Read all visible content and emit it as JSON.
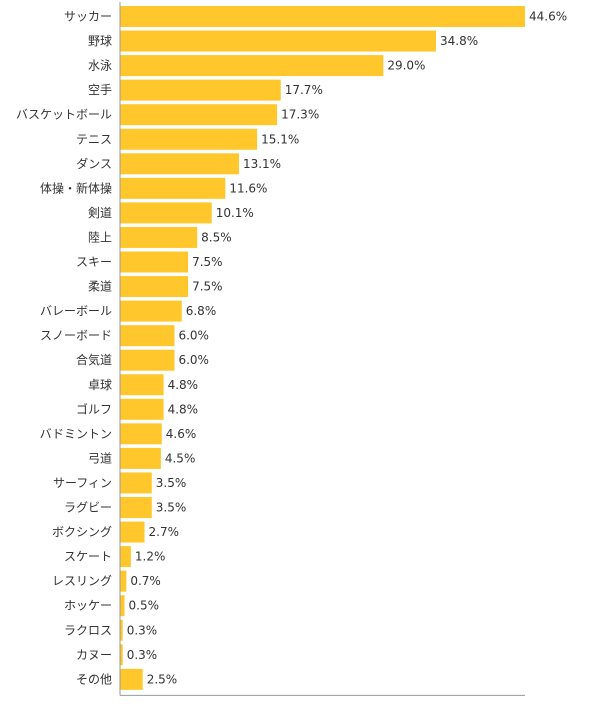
{
  "chart_data": {
    "type": "bar",
    "orientation": "horizontal",
    "title": "",
    "xlabel": "",
    "ylabel": "",
    "xlim": [
      0,
      50
    ],
    "grid": false,
    "legend": "none",
    "bar_color": "#FFC72C",
    "axis_color": "#999999",
    "value_suffix": "%",
    "categories": [
      "サッカー",
      "野球",
      "水泳",
      "空手",
      "バスケットボール",
      "テニス",
      "ダンス",
      "体操・新体操",
      "剣道",
      "陸上",
      "スキー",
      "柔道",
      "バレーボール",
      "スノーボード",
      "合気道",
      "卓球",
      "ゴルフ",
      "バドミントン",
      "弓道",
      "サーフィン",
      "ラグビー",
      "ボクシング",
      "スケート",
      "レスリング",
      "ホッケー",
      "ラクロス",
      "カヌー",
      "その他"
    ],
    "values": [
      44.6,
      34.8,
      29.0,
      17.7,
      17.3,
      15.1,
      13.1,
      11.6,
      10.1,
      8.5,
      7.5,
      7.5,
      6.8,
      6.0,
      6.0,
      4.8,
      4.8,
      4.6,
      4.5,
      3.5,
      3.5,
      2.7,
      1.2,
      0.7,
      0.5,
      0.3,
      0.3,
      2.5
    ],
    "value_labels": [
      "44.6%",
      "34.8%",
      "29.0%",
      "17.7%",
      "17.3%",
      "15.1%",
      "13.1%",
      "11.6%",
      "10.1%",
      "8.5%",
      "7.5%",
      "7.5%",
      "6.8%",
      "6.0%",
      "6.0%",
      "4.8%",
      "4.8%",
      "4.6%",
      "4.5%",
      "3.5%",
      "3.5%",
      "2.7%",
      "1.2%",
      "0.7%",
      "0.5%",
      "0.3%",
      "0.3%",
      "2.5%"
    ]
  }
}
